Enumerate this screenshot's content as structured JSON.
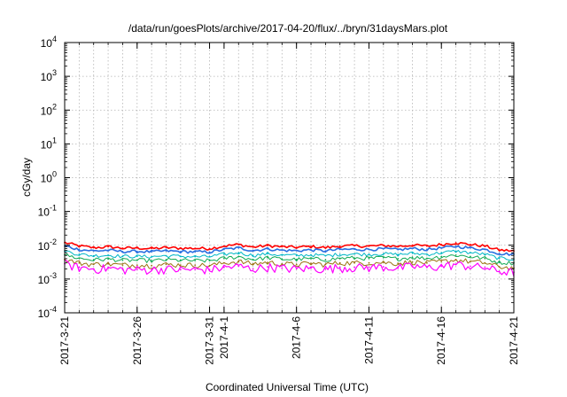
{
  "chart_data": {
    "type": "line",
    "title": "/data/run/goesPlots/archive/2017-04-20/flux/../bryn/31daysMars.plot",
    "xlabel": "Coordinated Universal Time (UTC)",
    "ylabel": "cGy/day",
    "yscale": "log",
    "ylim": [
      0.0001,
      10000
    ],
    "yticks": [
      {
        "value": 0.0001,
        "base": "10",
        "exp": "-4"
      },
      {
        "value": 0.001,
        "base": "10",
        "exp": "-3"
      },
      {
        "value": 0.01,
        "base": "10",
        "exp": "-2"
      },
      {
        "value": 0.1,
        "base": "10",
        "exp": "-1"
      },
      {
        "value": 1,
        "base": "10",
        "exp": "0"
      },
      {
        "value": 10,
        "base": "10",
        "exp": "1"
      },
      {
        "value": 100,
        "base": "10",
        "exp": "2"
      },
      {
        "value": 1000,
        "base": "10",
        "exp": "3"
      },
      {
        "value": 10000,
        "base": "10",
        "exp": "4"
      }
    ],
    "xlim": [
      "2017-03-21",
      "2017-04-21"
    ],
    "xticks": [
      "2017-3-21",
      "2017-3-26",
      "2017-3-31",
      "2017-4-1",
      "2017-4-6",
      "2017-4-11",
      "2017-4-16",
      "2017-4-21"
    ],
    "xtick_dates": [
      "2017-03-21",
      "2017-03-26",
      "2017-03-31",
      "2017-04-01",
      "2017-04-06",
      "2017-04-11",
      "2017-04-16",
      "2017-04-21"
    ],
    "grid": true,
    "series_style": [
      {
        "color": "#ff0000",
        "width": 1.6
      },
      {
        "color": "#2a6fe0",
        "width": 1.6
      },
      {
        "color": "#00b7c6",
        "width": 1.0
      },
      {
        "color": "#11aa55",
        "width": 1.0
      },
      {
        "color": "#9a7010",
        "width": 1.0
      },
      {
        "color": "#ff00ff",
        "width": 1.2
      }
    ],
    "x": [
      "2017-03-21",
      "2017-03-22",
      "2017-03-23",
      "2017-03-24",
      "2017-03-25",
      "2017-03-26",
      "2017-03-27",
      "2017-03-28",
      "2017-03-29",
      "2017-03-30",
      "2017-03-31",
      "2017-04-01",
      "2017-04-02",
      "2017-04-03",
      "2017-04-04",
      "2017-04-05",
      "2017-04-06",
      "2017-04-07",
      "2017-04-08",
      "2017-04-09",
      "2017-04-10",
      "2017-04-11",
      "2017-04-12",
      "2017-04-13",
      "2017-04-14",
      "2017-04-15",
      "2017-04-16",
      "2017-04-17",
      "2017-04-18",
      "2017-04-19",
      "2017-04-20",
      "2017-04-21"
    ],
    "series": [
      {
        "values": [
          0.012,
          0.0095,
          0.0085,
          0.009,
          0.0082,
          0.0083,
          0.008,
          0.0085,
          0.0082,
          0.0081,
          0.008,
          0.0095,
          0.0105,
          0.0088,
          0.0098,
          0.009,
          0.0087,
          0.0092,
          0.0085,
          0.0094,
          0.0096,
          0.0094,
          0.0098,
          0.0093,
          0.0101,
          0.0094,
          0.0105,
          0.0118,
          0.0105,
          0.0095,
          0.0072,
          0.0068
        ]
      },
      {
        "values": [
          0.0095,
          0.0075,
          0.0068,
          0.0071,
          0.0065,
          0.0066,
          0.0064,
          0.0068,
          0.0065,
          0.0064,
          0.0063,
          0.0075,
          0.0083,
          0.007,
          0.0078,
          0.0071,
          0.0069,
          0.0073,
          0.0068,
          0.0075,
          0.0076,
          0.0075,
          0.0078,
          0.0074,
          0.008,
          0.0075,
          0.0083,
          0.0093,
          0.0083,
          0.0075,
          0.0057,
          0.0054
        ]
      },
      {
        "values": [
          0.0068,
          0.0054,
          0.0049,
          0.0051,
          0.0047,
          0.0047,
          0.0046,
          0.0049,
          0.0047,
          0.0046,
          0.0046,
          0.0054,
          0.006,
          0.005,
          0.0056,
          0.0051,
          0.005,
          0.0052,
          0.0049,
          0.0054,
          0.0055,
          0.0054,
          0.0056,
          0.0053,
          0.0058,
          0.0054,
          0.006,
          0.0067,
          0.006,
          0.0054,
          0.0041,
          0.0039
        ]
      },
      {
        "values": [
          0.0052,
          0.0041,
          0.0037,
          0.0039,
          0.0036,
          0.0036,
          0.0035,
          0.0037,
          0.0036,
          0.0035,
          0.0035,
          0.0041,
          0.0046,
          0.0038,
          0.0043,
          0.0039,
          0.0038,
          0.004,
          0.0037,
          0.0041,
          0.0042,
          0.0041,
          0.0043,
          0.004,
          0.0044,
          0.0041,
          0.0046,
          0.0051,
          0.0046,
          0.0041,
          0.0031,
          0.003
        ]
      },
      {
        "values": [
          0.0038,
          0.003,
          0.0027,
          0.0028,
          0.0026,
          0.0026,
          0.0025,
          0.0027,
          0.0026,
          0.0026,
          0.0025,
          0.003,
          0.0033,
          0.0028,
          0.0031,
          0.0028,
          0.0027,
          0.0029,
          0.0027,
          0.003,
          0.003,
          0.003,
          0.0031,
          0.0029,
          0.0032,
          0.003,
          0.0033,
          0.0037,
          0.0033,
          0.003,
          0.0023,
          0.0021
        ]
      },
      {
        "values": [
          0.0028,
          0.0022,
          0.002,
          0.0021,
          0.0019,
          0.0019,
          0.0019,
          0.002,
          0.0019,
          0.0019,
          0.0019,
          0.0022,
          0.0024,
          0.002,
          0.0023,
          0.0021,
          0.002,
          0.0021,
          0.002,
          0.0022,
          0.0022,
          0.0022,
          0.0023,
          0.0021,
          0.0024,
          0.0022,
          0.0024,
          0.0027,
          0.0024,
          0.0022,
          0.0017,
          0.0016
        ]
      }
    ]
  }
}
